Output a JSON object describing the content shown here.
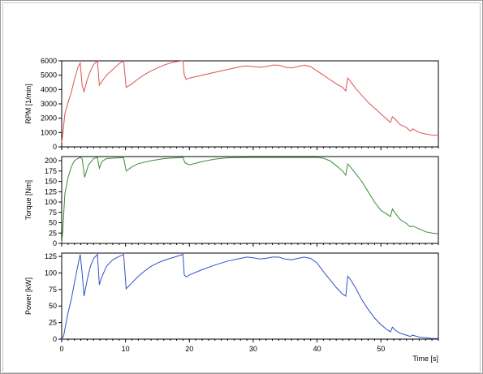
{
  "chart_data": [
    {
      "type": "line",
      "ylabel": "RPM [1/min]",
      "ylim": [
        0,
        6000
      ],
      "yticks": [
        0,
        1000,
        2000,
        3000,
        4000,
        5000,
        6000
      ],
      "xlim": [
        0,
        59
      ],
      "grid": false,
      "color": "#e05050",
      "series": [
        {
          "x": [
            0,
            0.2,
            0.5,
            1,
            1.5,
            2,
            2.5,
            2.9,
            3.2,
            3.5,
            4,
            4.5,
            5,
            5.6,
            5.9,
            6.2,
            7,
            8,
            9,
            9.7,
            10.1,
            11,
            12,
            13,
            14,
            15,
            16,
            17,
            18,
            19,
            19.2,
            19.5,
            20,
            22,
            24,
            26,
            28,
            29,
            30,
            31,
            32,
            33,
            34,
            35,
            36,
            37,
            38,
            39,
            40,
            41,
            42,
            43,
            44,
            44.5,
            44.8,
            45.1,
            46,
            47,
            48,
            49,
            50,
            51,
            51.5,
            51.8,
            52.3,
            53,
            54,
            54.6,
            55,
            56,
            57,
            58,
            59
          ],
          "y": [
            300,
            1000,
            2300,
            3100,
            3800,
            4700,
            5500,
            5850,
            4300,
            3850,
            4700,
            5300,
            5750,
            6000,
            4300,
            4500,
            5000,
            5400,
            5800,
            6000,
            4150,
            4400,
            4750,
            5050,
            5300,
            5500,
            5700,
            5850,
            5950,
            6000,
            5000,
            4700,
            4800,
            5000,
            5200,
            5400,
            5600,
            5650,
            5600,
            5550,
            5600,
            5700,
            5700,
            5550,
            5500,
            5600,
            5700,
            5600,
            5300,
            5000,
            4700,
            4400,
            4150,
            3900,
            4800,
            4650,
            4100,
            3600,
            3100,
            2700,
            2300,
            1900,
            1700,
            2100,
            1900,
            1550,
            1350,
            1100,
            1250,
            1000,
            900,
            820,
            800
          ]
        }
      ]
    },
    {
      "type": "line",
      "ylabel": "Torque [Nm]",
      "ylim": [
        0,
        210
      ],
      "yticks": [
        0,
        25,
        50,
        75,
        100,
        125,
        150,
        175,
        200
      ],
      "xlim": [
        0,
        59
      ],
      "grid": false,
      "color": "#3a8a3a",
      "series": [
        {
          "x": [
            0,
            0.2,
            0.5,
            1,
            1.5,
            2,
            2.5,
            2.9,
            3.2,
            3.6,
            4.2,
            5,
            5.6,
            5.9,
            6.3,
            7,
            8,
            9,
            9.7,
            10.1,
            11,
            12,
            14,
            16,
            18,
            19,
            19.3,
            20,
            22,
            24,
            26,
            30,
            35,
            40,
            41,
            42,
            43,
            44,
            44.5,
            44.8,
            45.2,
            46,
            47,
            48,
            49,
            50,
            51,
            51.5,
            51.8,
            52.3,
            53,
            54,
            54.6,
            55,
            56,
            57,
            58,
            59
          ],
          "y": [
            0,
            40,
            120,
            160,
            185,
            200,
            205,
            208,
            205,
            160,
            190,
            205,
            208,
            182,
            198,
            205,
            206,
            207,
            207,
            175,
            185,
            193,
            200,
            205,
            207,
            208,
            195,
            190,
            198,
            204,
            207,
            208,
            208,
            208,
            206,
            200,
            188,
            175,
            165,
            192,
            185,
            170,
            150,
            125,
            100,
            80,
            70,
            65,
            83,
            72,
            58,
            48,
            40,
            42,
            35,
            28,
            25,
            23
          ]
        }
      ]
    },
    {
      "type": "line",
      "ylabel": "Power [kW]",
      "ylim": [
        0,
        130
      ],
      "yticks": [
        0,
        25,
        50,
        75,
        100,
        125
      ],
      "xlim": [
        0,
        59
      ],
      "grid": false,
      "color": "#3050c8",
      "series": [
        {
          "x": [
            0,
            0.3,
            0.7,
            1,
            1.5,
            2,
            2.5,
            2.9,
            3.2,
            3.5,
            4,
            4.5,
            5,
            5.6,
            5.9,
            6.2,
            7,
            8,
            9,
            9.7,
            10.1,
            11,
            12,
            13,
            14,
            15,
            16,
            17,
            18,
            19,
            19.2,
            19.5,
            20,
            22,
            24,
            26,
            28,
            29,
            30,
            31,
            32,
            33,
            34,
            35,
            36,
            37,
            38,
            39,
            40,
            41,
            42,
            43,
            44,
            44.5,
            44.8,
            45.1,
            46,
            47,
            48,
            49,
            50,
            51,
            51.5,
            51.8,
            52.3,
            53,
            54,
            54.6,
            55,
            56,
            57,
            58,
            59
          ],
          "y": [
            0,
            5,
            25,
            40,
            60,
            85,
            110,
            128,
            100,
            65,
            90,
            110,
            122,
            128,
            82,
            92,
            110,
            120,
            125,
            128,
            76,
            85,
            95,
            103,
            110,
            115,
            119,
            122,
            125,
            128,
            97,
            94,
            97,
            105,
            112,
            118,
            122,
            124,
            123,
            121,
            122,
            124,
            124,
            121,
            120,
            122,
            124,
            122,
            115,
            102,
            90,
            78,
            68,
            65,
            95,
            92,
            78,
            60,
            45,
            32,
            22,
            14,
            11,
            18,
            13,
            9,
            6,
            4,
            6,
            3,
            2,
            1,
            1
          ]
        }
      ]
    }
  ],
  "x_axis": {
    "label": "Time [s]",
    "ticks": [
      0,
      10,
      20,
      30,
      40,
      50
    ]
  }
}
